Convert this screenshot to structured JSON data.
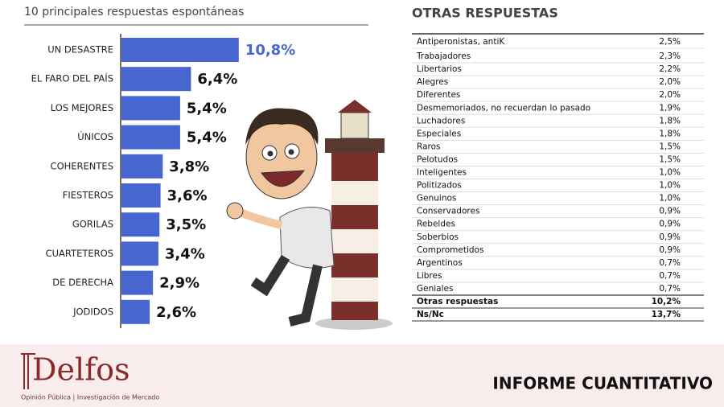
{
  "header": {
    "title": "10 principales respuestas espontáneas"
  },
  "chart_data": {
    "type": "bar",
    "orientation": "horizontal",
    "categories": [
      "UN DESASTRE",
      "EL FARO DEL PAÍS",
      "LOS MEJORES",
      "ÚNICOS",
      "COHERENTES",
      "FIESTEROS",
      "GORILAS",
      "CUARTETEROS",
      "DE DERECHA",
      "JODIDOS"
    ],
    "values": [
      10.8,
      6.4,
      5.4,
      5.4,
      3.8,
      3.6,
      3.5,
      3.4,
      2.9,
      2.6
    ],
    "value_labels": [
      "10,8%",
      "6,4%",
      "5,4%",
      "5,4%",
      "3,8%",
      "3,6%",
      "3,5%",
      "3,4%",
      "2,9%",
      "2,6%"
    ],
    "color": "#4766cf"
  },
  "table": {
    "title": "OTRAS RESPUESTAS",
    "rows": [
      [
        "Antiperonistas, antiK",
        "2,5%"
      ],
      [
        "Trabajadores",
        "2,3%"
      ],
      [
        "Libertarios",
        "2,2%"
      ],
      [
        "Alegres",
        "2,0%"
      ],
      [
        "Diferentes",
        "2,0%"
      ],
      [
        "Desmemoriados, no recuerdan lo pasado",
        "1,9%"
      ],
      [
        "Luchadores",
        "1,8%"
      ],
      [
        "Especiales",
        "1,8%"
      ],
      [
        "Raros",
        "1,5%"
      ],
      [
        "Pelotudos",
        "1,5%"
      ],
      [
        "Inteligentes",
        "1,0%"
      ],
      [
        "Politizados",
        "1,0%"
      ],
      [
        "Genuinos",
        "1,0%"
      ],
      [
        "Conservadores",
        "0,9%"
      ],
      [
        "Rebeldes",
        "0,9%"
      ],
      [
        "Soberbios",
        "0,9%"
      ],
      [
        "Comprometidos",
        "0,9%"
      ],
      [
        "Argentinos",
        "0,7%"
      ],
      [
        "Libres",
        "0,7%"
      ],
      [
        "Geniales",
        "0,7%"
      ]
    ],
    "totals": [
      [
        "Otras respuestas",
        "10,2%"
      ],
      [
        "Ns/Nc",
        "13,7%"
      ]
    ]
  },
  "footer": {
    "brand": "Delfos",
    "tagline": "Opinión Pública | Investigación de Mercado",
    "report": "INFORME CUANTITATIVO"
  }
}
